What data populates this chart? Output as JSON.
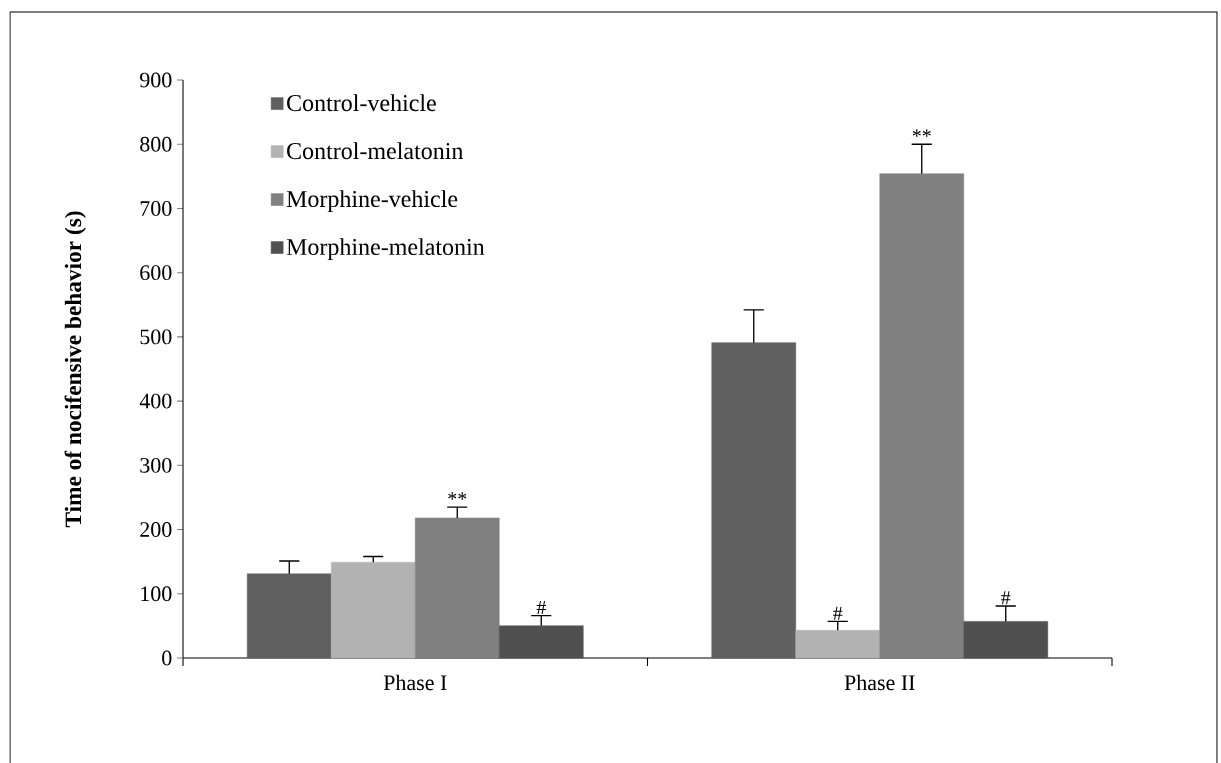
{
  "chart_data": {
    "type": "bar",
    "ylabel": "Time of nocifensive behavior (s)",
    "categories": [
      "Phase I",
      "Phase II"
    ],
    "series": [
      {
        "name": "Control-vehicle",
        "color": "#606060",
        "values": [
          131,
          491
        ],
        "errors": [
          20,
          51
        ]
      },
      {
        "name": "Control-melatonin",
        "color": "#b2b2b2",
        "values": [
          149,
          43
        ],
        "errors": [
          9,
          14
        ],
        "value_labels": [
          null,
          "#"
        ]
      },
      {
        "name": "Morphine-vehicle",
        "color": "#808080",
        "values": [
          218,
          754
        ],
        "errors": [
          17,
          46
        ],
        "value_labels": [
          "**",
          "**"
        ]
      },
      {
        "name": "Morphine-melatonin",
        "color": "#505050",
        "values": [
          50,
          57
        ],
        "errors": [
          16,
          24
        ],
        "value_labels": [
          "#",
          "#"
        ]
      }
    ],
    "ylim": [
      0,
      900
    ],
    "yticks": [
      0,
      100,
      200,
      300,
      400,
      500,
      600,
      700,
      800,
      900
    ],
    "legend": "top left"
  }
}
